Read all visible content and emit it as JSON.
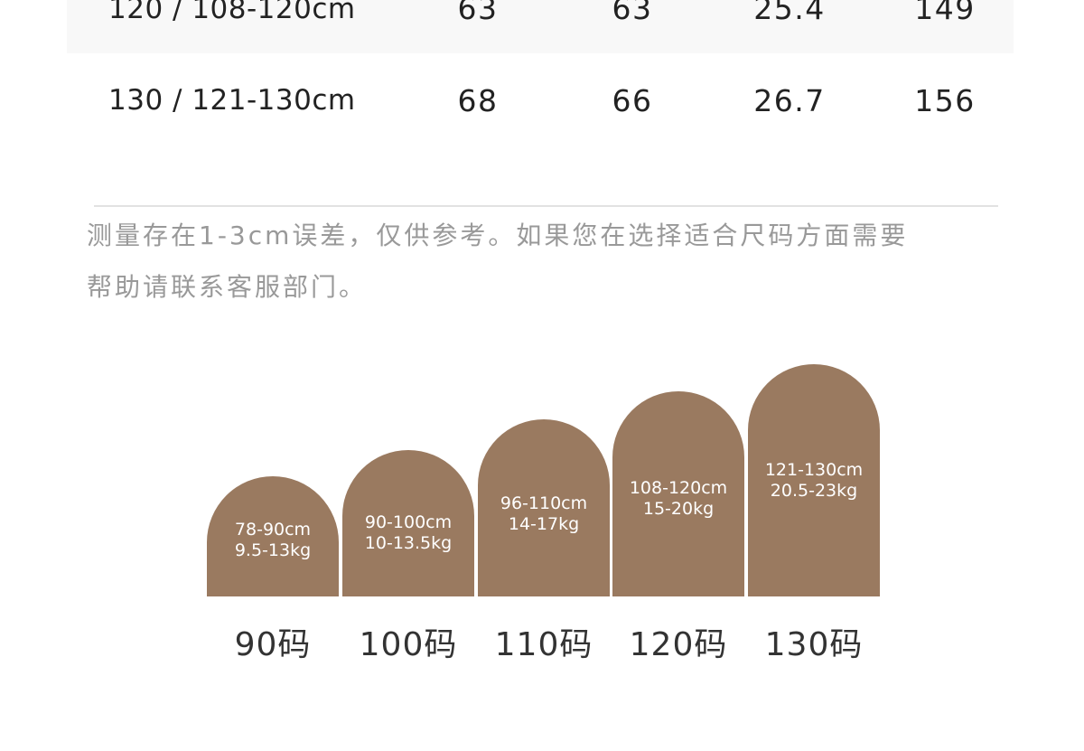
{
  "size_table": {
    "rows": [
      {
        "size": "120 / 108-120cm",
        "v1": "63",
        "v2": "63",
        "v3": "25.4",
        "v4": "149"
      },
      {
        "size": "130 / 121-130cm",
        "v1": "68",
        "v2": "66",
        "v3": "26.7",
        "v4": "156"
      }
    ]
  },
  "note": {
    "line1": "测量存在1-3cm误差，仅供参考。如果您在选择适合尺码方面需要",
    "line2": "帮助请联系客服部门。"
  },
  "size_chart": {
    "color": "#9a7a60",
    "items": [
      {
        "height": "78-90cm",
        "weight": "9.5-13kg",
        "label": "90码"
      },
      {
        "height": "90-100cm",
        "weight": "10-13.5kg",
        "label": "100码"
      },
      {
        "height": "96-110cm",
        "weight": "14-17kg",
        "label": "110码"
      },
      {
        "height": "108-120cm",
        "weight": "15-20kg",
        "label": "120码"
      },
      {
        "height": "121-130cm",
        "weight": "20.5-23kg",
        "label": "130码"
      }
    ]
  }
}
